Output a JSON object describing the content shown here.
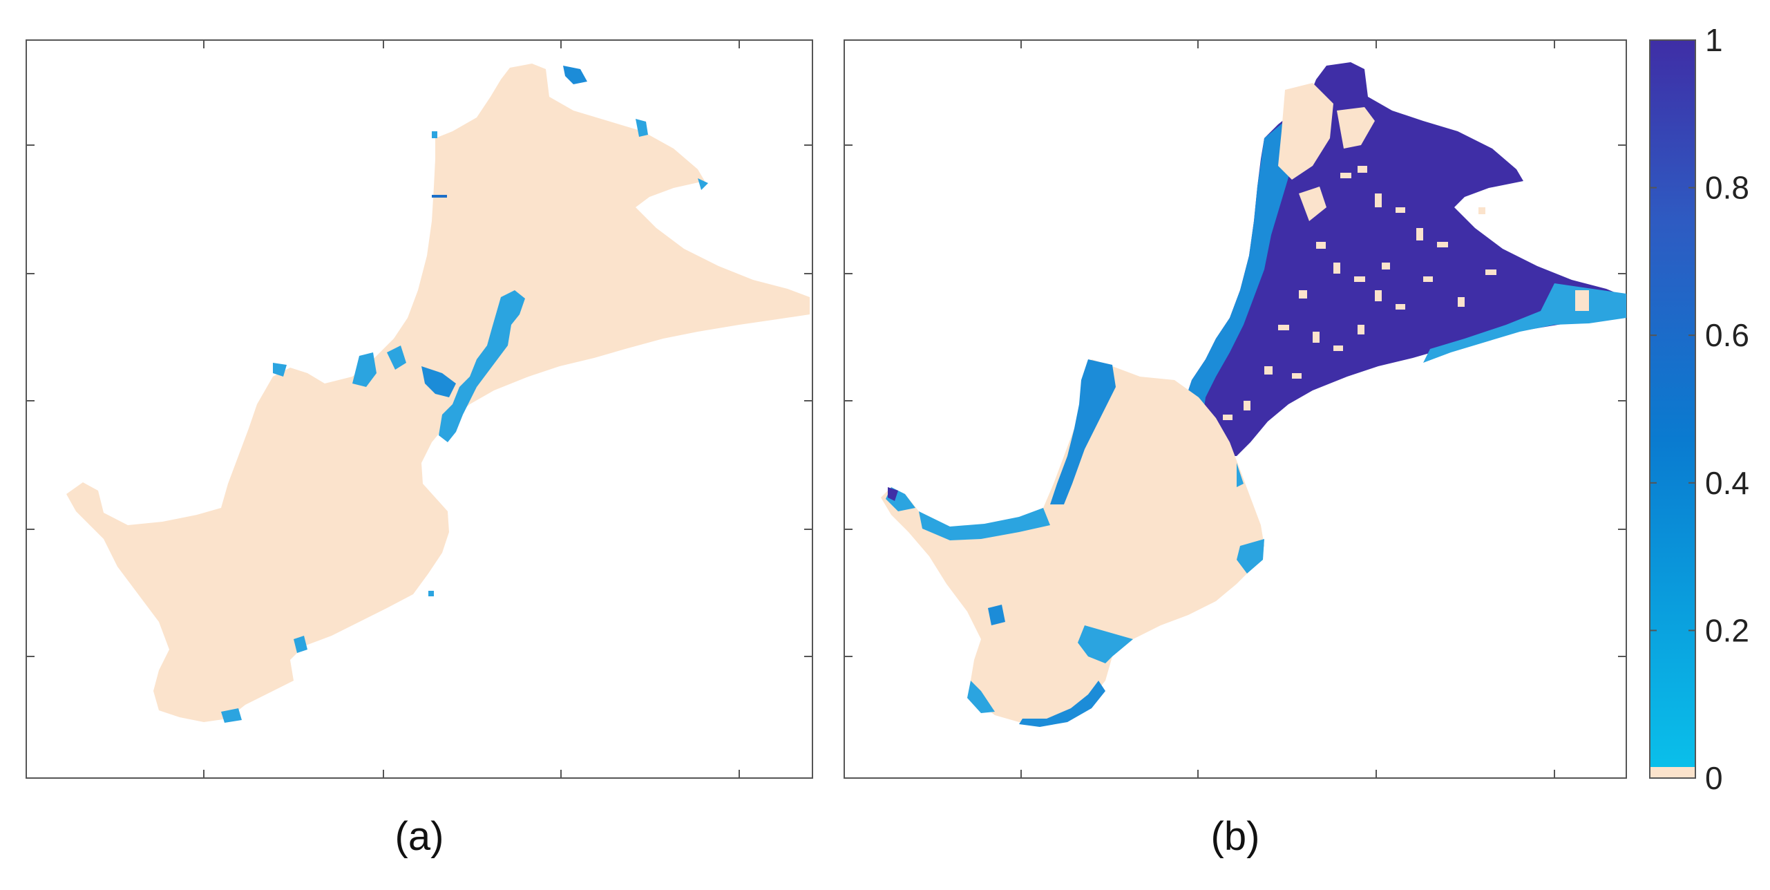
{
  "figure": {
    "panels": [
      {
        "label": "(a)"
      },
      {
        "label": "(b)"
      }
    ],
    "colorbar": {
      "ticks": [
        "0",
        "0.2",
        "0.4",
        "0.6",
        "0.8",
        "1"
      ],
      "range": [
        0,
        1
      ],
      "colors": {
        "zero": "#FBE3CC",
        "low": "#0ABFEA",
        "mid": "#0A7BD0",
        "high": "#3F2EA6"
      }
    },
    "colors": {
      "land": "#FBE3CC",
      "water_light": "#2BA4E0",
      "water_deep": "#3F2EA6",
      "axes": "#555555"
    }
  }
}
